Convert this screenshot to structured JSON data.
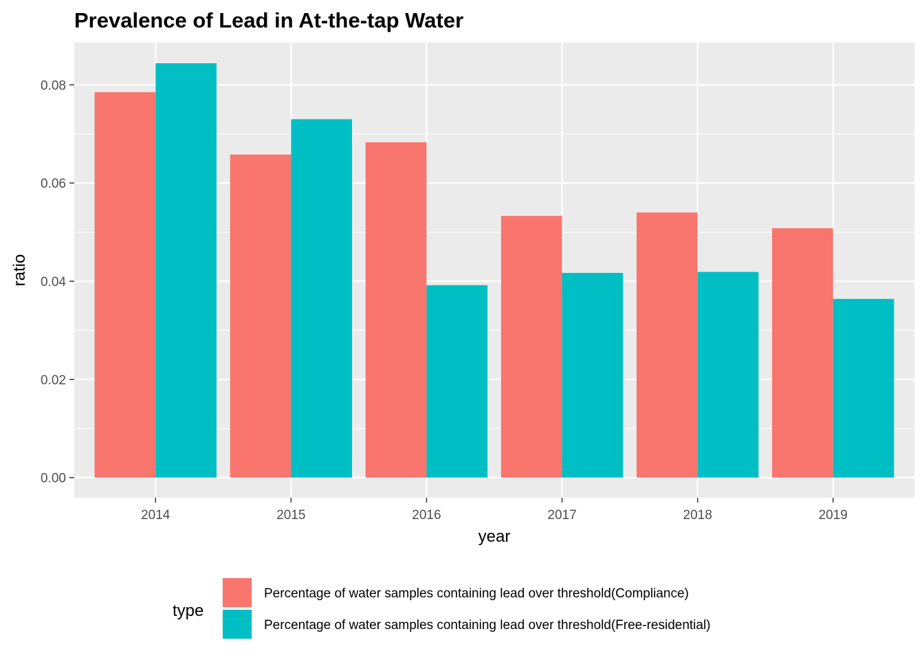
{
  "chart_data": {
    "type": "bar",
    "title": "Prevalence of Lead in At-the-tap Water",
    "xlabel": "year",
    "ylabel": "ratio",
    "categories": [
      "2014",
      "2015",
      "2016",
      "2017",
      "2018",
      "2019"
    ],
    "series": [
      {
        "name": "Percentage of water samples containing lead over threshold(Compliance)",
        "color": "#F8766D",
        "values": [
          0.0785,
          0.0658,
          0.0683,
          0.0533,
          0.054,
          0.0508
        ]
      },
      {
        "name": "Percentage of water samples containing lead over threshold(Free-residential)",
        "color": "#00BFC4",
        "values": [
          0.0844,
          0.073,
          0.0392,
          0.0417,
          0.0419,
          0.0364
        ]
      }
    ],
    "yticks": [
      "0.00",
      "0.02",
      "0.04",
      "0.06",
      "0.08"
    ],
    "ylim": [
      -0.0041,
      0.0886
    ],
    "legend_title": "type",
    "legend_position": "bottom",
    "panel_background": "#EBEBEB",
    "grid": true
  }
}
